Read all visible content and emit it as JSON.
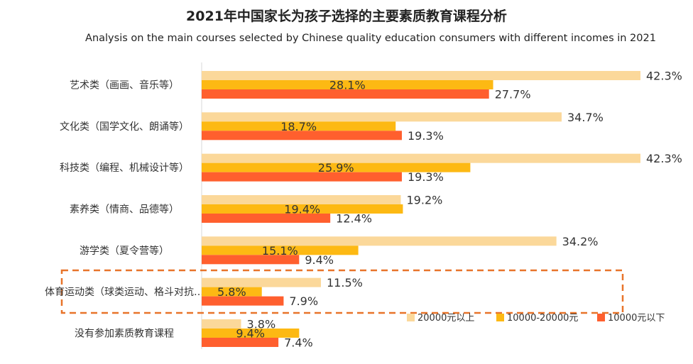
{
  "title": "2021年中国家长为孩子选择的主要素质教育课程分析",
  "subtitle": "Analysis on the main courses selected by Chinese quality education consumers with different incomes in 2021",
  "chart_data": {
    "type": "bar",
    "orientation": "horizontal",
    "categories": [
      "艺术类（画画、音乐等）",
      "文化类（国学文化、朗诵等）",
      "科技类（编程、机械设计等）",
      "素养类（情商、品德等）",
      "游学类（夏令营等）",
      "体育运动类（球类运动、格斗对抗…",
      "没有参加素质教育课程"
    ],
    "series": [
      {
        "name": "20000元以上",
        "color": "#FBD89A",
        "values": [
          42.3,
          34.7,
          42.3,
          19.2,
          34.2,
          11.5,
          3.8
        ]
      },
      {
        "name": "10000-20000元",
        "color": "#FDB913",
        "values": [
          28.1,
          18.7,
          25.9,
          19.4,
          15.1,
          5.8,
          9.4
        ]
      },
      {
        "name": "10000元以下",
        "color": "#FF5F2E",
        "values": [
          27.7,
          19.3,
          19.3,
          12.4,
          9.4,
          7.9,
          7.4
        ]
      }
    ],
    "value_suffix": "%",
    "xlim": [
      0,
      42.3
    ],
    "grid": false,
    "legend_position": "bottom-right",
    "highlight_category": "体育运动类（球类运动、格斗对抗…",
    "highlight_color": "#E8742A"
  }
}
